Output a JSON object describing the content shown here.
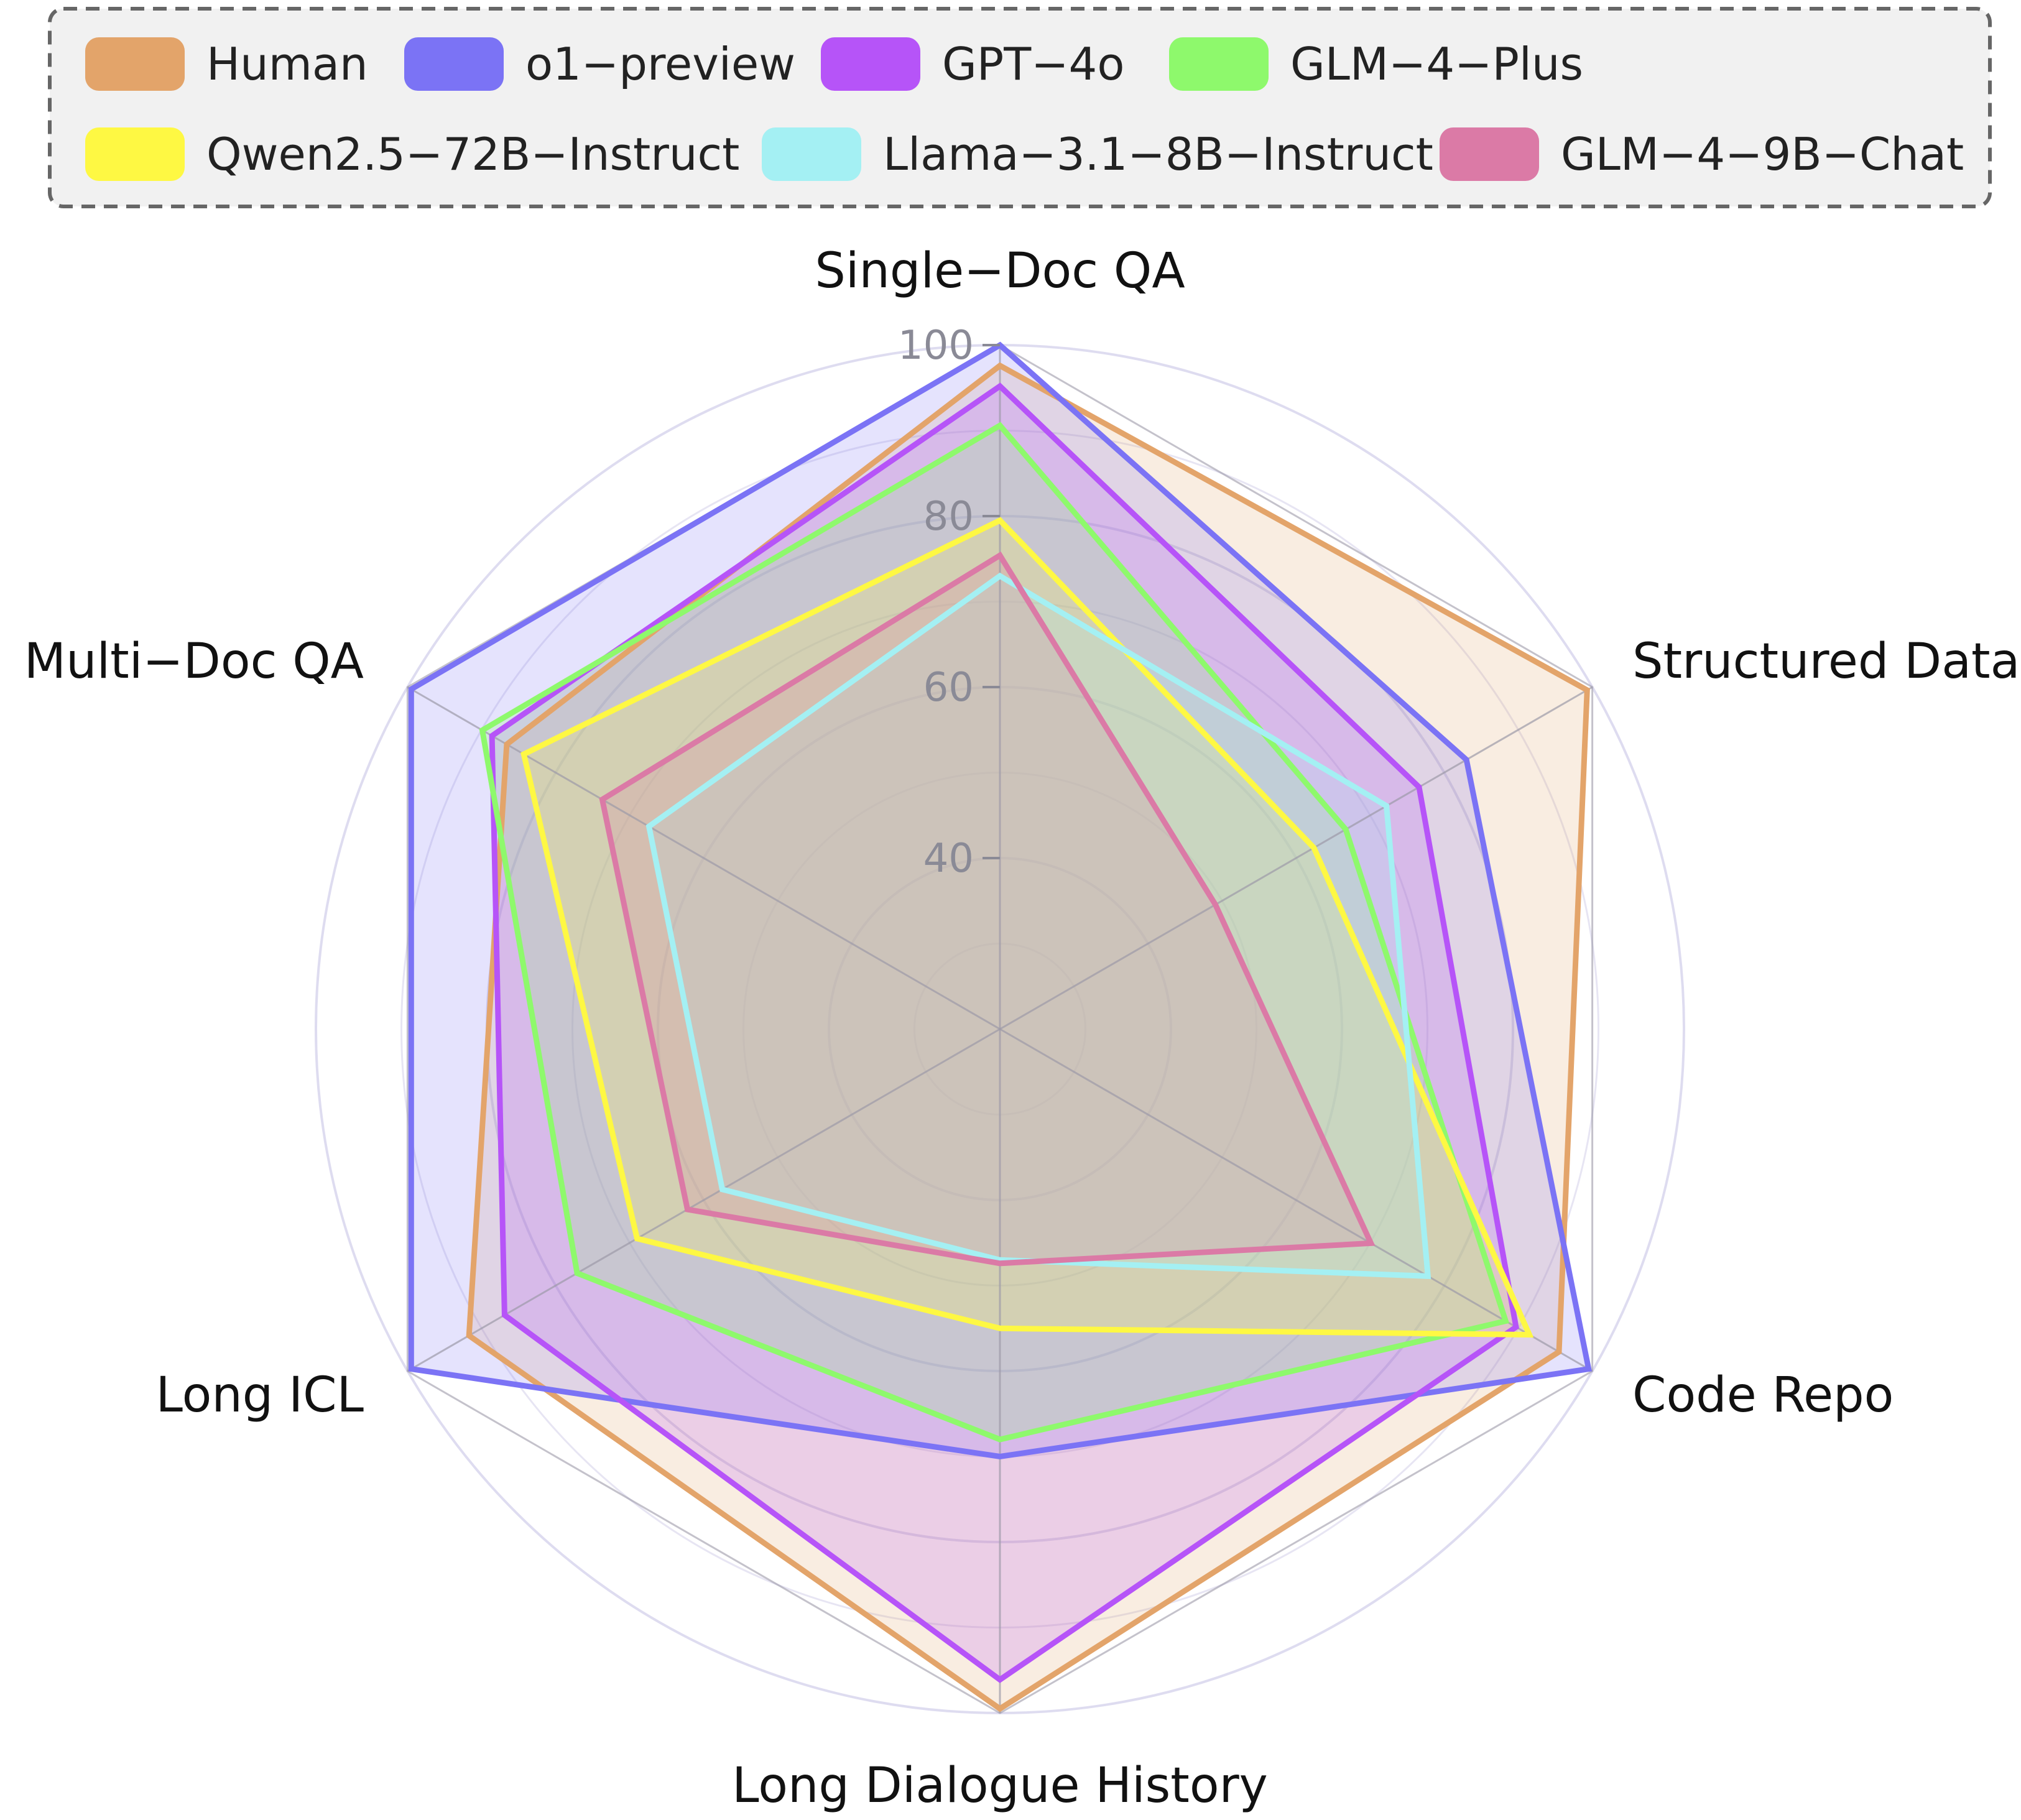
{
  "chart_data": {
    "type": "radar",
    "axes": [
      "Single−Doc QA",
      "Structured Data",
      "Code Repo",
      "Long Dialogue History",
      "Long ICL",
      "Multi−Doc QA"
    ],
    "range": [
      20,
      100
    ],
    "ticks": [
      40,
      60,
      80,
      100
    ],
    "tick_labels": [
      "40",
      "60",
      "80",
      "100"
    ],
    "grid": true,
    "legend_position": "top",
    "series": [
      {
        "name": "Human",
        "color": "#E3A46A",
        "values": [
          97.6,
          99.3,
          95.5,
          99.5,
          91.7,
          86.6
        ]
      },
      {
        "name": "o1−preview",
        "color": "#7B73F5",
        "values": [
          100,
          83.0,
          99.5,
          70.0,
          99.5,
          99.5
        ]
      },
      {
        "name": "GPT−4o",
        "color": "#B654F8",
        "values": [
          95.2,
          76.6,
          89.7,
          96.1,
          86.9,
          88.6
        ]
      },
      {
        "name": "GLM−4−Plus",
        "color": "#8EF96C",
        "values": [
          90.6,
          66.7,
          88.3,
          68.0,
          77.1,
          89.9
        ]
      },
      {
        "name": "Qwen2.5−72B−Instruct",
        "color": "#FEF843",
        "values": [
          79.5,
          62.4,
          91.5,
          55.0,
          69.0,
          84.3
        ]
      },
      {
        "name": "Llama−3.1−8B−Instruct",
        "color": "#A4F0F3",
        "values": [
          73.0,
          72.2,
          77.8,
          47.0,
          57.5,
          67.4
        ]
      },
      {
        "name": "GLM−4−9B−Chat",
        "color": "#DB7AA6",
        "values": [
          75.4,
          49.1,
          70.1,
          47.4,
          62.2,
          73.7
        ]
      }
    ]
  }
}
